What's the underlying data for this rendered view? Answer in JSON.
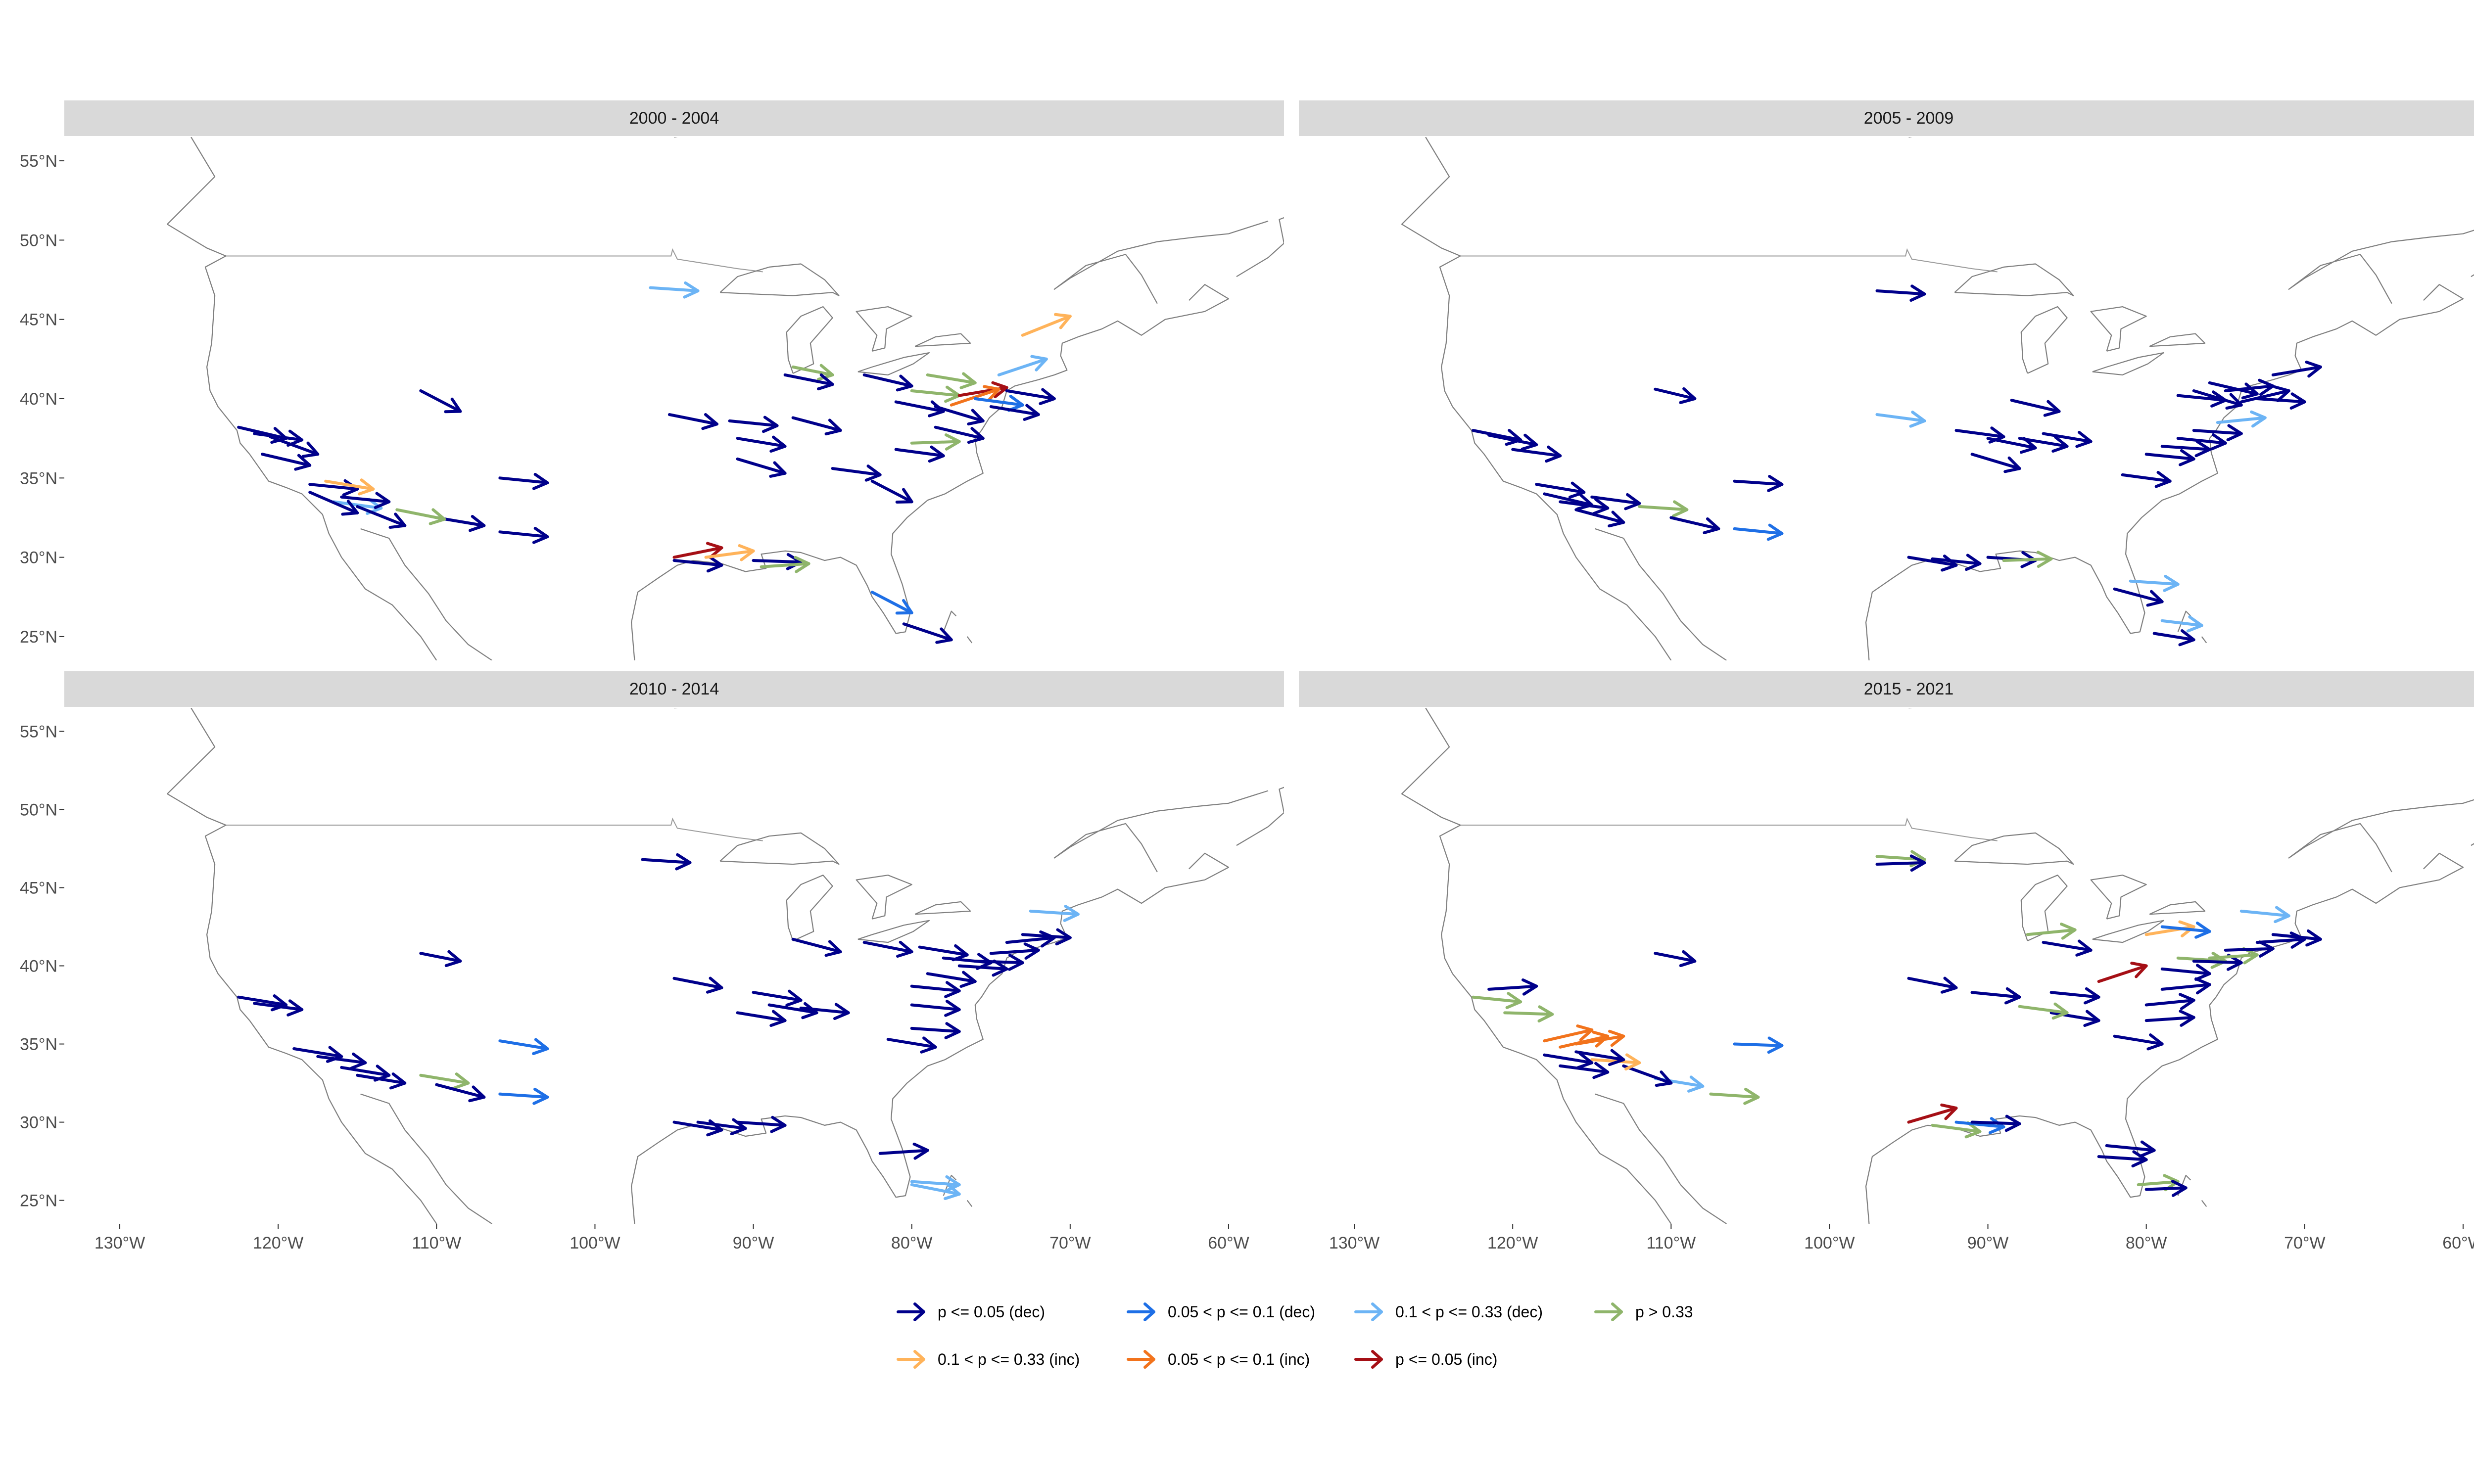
{
  "panels": [
    {
      "title": "2000 - 2004",
      "arrows": [
        [
          -96.5,
          47.0,
          -93.5,
          46.8,
          2
        ],
        [
          -87.5,
          42.0,
          -85,
          41.5,
          3
        ],
        [
          -88,
          41.5,
          -85,
          40.9,
          0
        ],
        [
          -83,
          41.5,
          -80,
          40.8,
          0
        ],
        [
          -81,
          39.8,
          -78,
          39.2,
          0
        ],
        [
          -80,
          40.5,
          -77,
          40.2,
          3
        ],
        [
          -78.5,
          39.5,
          -75.5,
          38.6,
          0
        ],
        [
          -79,
          41.5,
          -76,
          41.0,
          3
        ],
        [
          -77,
          40.2,
          -74,
          40.7,
          6
        ],
        [
          -77.5,
          39.6,
          -74.5,
          40.6,
          5
        ],
        [
          -76,
          40.0,
          -73,
          39.6,
          1
        ],
        [
          -74.5,
          41.5,
          -71.5,
          42.5,
          2
        ],
        [
          -73,
          44,
          -70,
          45.2,
          4
        ],
        [
          -74,
          40.5,
          -71,
          40.0,
          0
        ],
        [
          -75,
          39.5,
          -72,
          39.0,
          0
        ],
        [
          -78.5,
          38.2,
          -75.5,
          37.5,
          0
        ],
        [
          -80,
          37.2,
          -77,
          37.3,
          3
        ],
        [
          -81,
          36.8,
          -78,
          36.4,
          0
        ],
        [
          -82.5,
          34.8,
          -80,
          33.5,
          0
        ],
        [
          -85,
          35.6,
          -82,
          35.2,
          0
        ],
        [
          -87.5,
          38.8,
          -84.5,
          38.0,
          0
        ],
        [
          -91.5,
          38.6,
          -88.5,
          38.3,
          0
        ],
        [
          -91,
          37.5,
          -88,
          37.0,
          0
        ],
        [
          -91,
          36.2,
          -88,
          35.3,
          0
        ],
        [
          -95.3,
          39.0,
          -92.3,
          38.4,
          0
        ],
        [
          -95,
          29.8,
          -92,
          29.5,
          0
        ],
        [
          -95,
          30.0,
          -92,
          30.6,
          6
        ],
        [
          -93,
          30,
          -90,
          30.4,
          4
        ],
        [
          -90,
          29.8,
          -87,
          29.7,
          0
        ],
        [
          -89.5,
          29.4,
          -86.5,
          29.6,
          3
        ],
        [
          -82.5,
          27.8,
          -80,
          26.5,
          1
        ],
        [
          -80.5,
          25.8,
          -77.5,
          24.8,
          0
        ],
        [
          -111,
          40.5,
          -108.5,
          39.2,
          0
        ],
        [
          -106,
          35.0,
          -103,
          34.7,
          0
        ],
        [
          -106,
          31.6,
          -103,
          31.3,
          0
        ],
        [
          -110,
          32.5,
          -107,
          32.0,
          0
        ],
        [
          -112.5,
          33.0,
          -109.5,
          32.4,
          3
        ],
        [
          -122.5,
          38.2,
          -119.5,
          37.5,
          0
        ],
        [
          -121.5,
          37.8,
          -118.5,
          37.4,
          0
        ],
        [
          -120.5,
          37.6,
          -117.5,
          36.5,
          0
        ],
        [
          -121,
          36.5,
          -118,
          35.8,
          0
        ],
        [
          -118,
          34.6,
          -115,
          34.3,
          0
        ],
        [
          -117,
          34.8,
          -114,
          34.3,
          4
        ],
        [
          -116.5,
          33.5,
          -113.5,
          33.1,
          2
        ],
        [
          -116,
          33.8,
          -113,
          33.5,
          0
        ],
        [
          -115,
          33.2,
          -112,
          32.0,
          0
        ],
        [
          -118,
          34.1,
          -115,
          32.8,
          0
        ]
      ]
    },
    {
      "title": "2005 - 2009",
      "arrows": [
        [
          -97,
          46.8,
          -94,
          46.6,
          0
        ],
        [
          -88.5,
          39.9,
          -85.5,
          39.2,
          0
        ],
        [
          -78,
          40.2,
          -75,
          39.9,
          0
        ],
        [
          -77,
          40.5,
          -74,
          39.6,
          0
        ],
        [
          -76,
          41.0,
          -73,
          40.3,
          0
        ],
        [
          -75,
          40.5,
          -72,
          40.8,
          0
        ],
        [
          -74,
          39.8,
          -71,
          40.5,
          0
        ],
        [
          -73,
          40.0,
          -70,
          39.8,
          0
        ],
        [
          -72,
          41.5,
          -69,
          42.0,
          0
        ],
        [
          -75.5,
          38.5,
          -72.5,
          38.8,
          2
        ],
        [
          -77,
          38.0,
          -74,
          37.8,
          0
        ],
        [
          -78,
          37.5,
          -75,
          37.2,
          0
        ],
        [
          -79,
          37.0,
          -76,
          36.8,
          0
        ],
        [
          -80,
          36.5,
          -77,
          36.2,
          0
        ],
        [
          -81.5,
          35.2,
          -78.5,
          34.8,
          0
        ],
        [
          -86.5,
          37.8,
          -83.5,
          37.3,
          0
        ],
        [
          -88,
          37.5,
          -85,
          37.0,
          0
        ],
        [
          -90,
          37.5,
          -87,
          36.9,
          0
        ],
        [
          -92,
          38.0,
          -89,
          37.6,
          0
        ],
        [
          -91,
          36.5,
          -88,
          35.6,
          0
        ],
        [
          -97,
          39.0,
          -94,
          38.6,
          2
        ],
        [
          -95,
          30.0,
          -92,
          29.5,
          0
        ],
        [
          -93.5,
          29.9,
          -90.5,
          29.6,
          0
        ],
        [
          -90,
          30.0,
          -87,
          29.8,
          0
        ],
        [
          -89,
          29.8,
          -86,
          29.9,
          3
        ],
        [
          -82,
          28.0,
          -79,
          27.2,
          0
        ],
        [
          -81,
          28.5,
          -78,
          28.3,
          2
        ],
        [
          -79,
          26.0,
          -76.5,
          25.7,
          2
        ],
        [
          -79.5,
          25.2,
          -77,
          24.8,
          0
        ],
        [
          -111,
          40.6,
          -108.5,
          40.0,
          0
        ],
        [
          -106,
          34.8,
          -103,
          34.6,
          0
        ],
        [
          -106,
          31.8,
          -103,
          31.5,
          1
        ],
        [
          -112,
          33.2,
          -109,
          33.0,
          3
        ],
        [
          -110,
          32.5,
          -107,
          31.8,
          0
        ],
        [
          -122.5,
          38.0,
          -119.5,
          37.4,
          0
        ],
        [
          -121.5,
          37.7,
          -118.5,
          37.1,
          0
        ],
        [
          -120,
          36.8,
          -117,
          36.4,
          0
        ],
        [
          -118.5,
          34.6,
          -115.5,
          34.1,
          0
        ],
        [
          -118,
          34.0,
          -115,
          33.3,
          0
        ],
        [
          -117,
          33.5,
          -114,
          33.1,
          0
        ],
        [
          -116,
          33.0,
          -113,
          32.2,
          0
        ],
        [
          -115,
          33.8,
          -112,
          33.4,
          0
        ]
      ]
    },
    {
      "title": "2010 - 2014",
      "arrows": [
        [
          -97,
          46.8,
          -94,
          46.6,
          0
        ],
        [
          -87.5,
          41.7,
          -84.5,
          40.9,
          0
        ],
        [
          -83,
          41.5,
          -80,
          40.9,
          0
        ],
        [
          -79.5,
          41.2,
          -76.5,
          40.7,
          0
        ],
        [
          -78,
          40.5,
          -75,
          40.2,
          0
        ],
        [
          -77,
          40.0,
          -74,
          39.8,
          0
        ],
        [
          -76,
          40.3,
          -73,
          40.2,
          0
        ],
        [
          -75,
          40.8,
          -72,
          41.0,
          0
        ],
        [
          -74,
          41.5,
          -71,
          41.8,
          0
        ],
        [
          -73,
          42.0,
          -70,
          41.8,
          0
        ],
        [
          -72.5,
          43.5,
          -69.5,
          43.3,
          2
        ],
        [
          -79,
          39.5,
          -76,
          39.0,
          0
        ],
        [
          -80,
          38.7,
          -77,
          38.4,
          0
        ],
        [
          -80,
          37.5,
          -77,
          37.2,
          0
        ],
        [
          -80,
          36.0,
          -77,
          35.8,
          0
        ],
        [
          -81.5,
          35.3,
          -78.5,
          34.8,
          0
        ],
        [
          -87,
          37.3,
          -84,
          37.0,
          0
        ],
        [
          -89,
          37.5,
          -86,
          37.0,
          0
        ],
        [
          -90,
          38.3,
          -87,
          37.8,
          0
        ],
        [
          -91,
          37.0,
          -88,
          36.5,
          0
        ],
        [
          -95,
          39.2,
          -92,
          38.6,
          0
        ],
        [
          -95,
          30.0,
          -92,
          29.5,
          0
        ],
        [
          -93.5,
          30.0,
          -90.5,
          29.6,
          0
        ],
        [
          -91,
          30.0,
          -88,
          29.8,
          0
        ],
        [
          -82,
          28.0,
          -79,
          28.2,
          0
        ],
        [
          -80,
          26.2,
          -77,
          26.0,
          2
        ],
        [
          -80,
          26.0,
          -77,
          25.4,
          2
        ],
        [
          -111,
          40.8,
          -108.5,
          40.3,
          0
        ],
        [
          -106,
          35.2,
          -103,
          34.7,
          1
        ],
        [
          -106,
          31.8,
          -103,
          31.6,
          1
        ],
        [
          -111,
          33.0,
          -108,
          32.5,
          3
        ],
        [
          -110,
          32.4,
          -107,
          31.6,
          0
        ],
        [
          -122.5,
          38.0,
          -119.5,
          37.5,
          0
        ],
        [
          -121.5,
          37.6,
          -118.5,
          37.2,
          0
        ],
        [
          -119,
          34.7,
          -116,
          34.2,
          0
        ],
        [
          -117.5,
          34.2,
          -114.5,
          33.8,
          0
        ],
        [
          -116,
          33.5,
          -113,
          33.0,
          0
        ],
        [
          -115,
          33.0,
          -112,
          32.5,
          0
        ]
      ]
    },
    {
      "title": "2015 - 2021",
      "arrows": [
        [
          -97,
          47.0,
          -94,
          46.8,
          3
        ],
        [
          -97,
          46.5,
          -94,
          46.6,
          0
        ],
        [
          -87.5,
          42.0,
          -84.5,
          42.3,
          3
        ],
        [
          -86.5,
          41.5,
          -83.5,
          41.0,
          0
        ],
        [
          -80,
          42.0,
          -77,
          42.5,
          4
        ],
        [
          -79,
          42.5,
          -76,
          42.2,
          1
        ],
        [
          -74,
          43.5,
          -71,
          43.2,
          2
        ],
        [
          -83,
          39.0,
          -80,
          40.0,
          6
        ],
        [
          -79,
          39.8,
          -76,
          39.5,
          0
        ],
        [
          -78,
          40.5,
          -75,
          40.3,
          3
        ],
        [
          -77,
          40.3,
          -74,
          40.2,
          0
        ],
        [
          -76,
          40.5,
          -73,
          40.7,
          3
        ],
        [
          -75,
          41.0,
          -72,
          41.1,
          0
        ],
        [
          -73,
          41.5,
          -70,
          41.7,
          0
        ],
        [
          -72,
          42.0,
          -69,
          41.7,
          0
        ],
        [
          -79,
          38.5,
          -76,
          38.8,
          0
        ],
        [
          -80,
          37.5,
          -77,
          37.8,
          0
        ],
        [
          -80,
          36.5,
          -77,
          36.7,
          0
        ],
        [
          -82,
          35.5,
          -79,
          35.0,
          0
        ],
        [
          -86,
          38.3,
          -83,
          38.0,
          0
        ],
        [
          -86,
          37.0,
          -83,
          36.5,
          0
        ],
        [
          -88,
          37.4,
          -85,
          37.0,
          3
        ],
        [
          -91,
          38.3,
          -88,
          38.0,
          0
        ],
        [
          -95,
          39.2,
          -92,
          38.6,
          0
        ],
        [
          -95,
          30.0,
          -92,
          30.9,
          6
        ],
        [
          -93.5,
          29.8,
          -90.5,
          29.4,
          3
        ],
        [
          -92,
          30.0,
          -89,
          29.7,
          1
        ],
        [
          -91,
          30.0,
          -88,
          29.9,
          0
        ],
        [
          -82.5,
          28.5,
          -79.5,
          28.2,
          0
        ],
        [
          -83,
          27.8,
          -80,
          27.6,
          0
        ],
        [
          -80.5,
          26.0,
          -78,
          26.2,
          3
        ],
        [
          -80,
          25.7,
          -77.5,
          25.8,
          0
        ],
        [
          -111,
          40.8,
          -108.5,
          40.3,
          0
        ],
        [
          -106,
          35.0,
          -103,
          34.9,
          1
        ],
        [
          -107.5,
          31.8,
          -104.5,
          31.6,
          3
        ],
        [
          -111,
          32.8,
          -108,
          32.3,
          2
        ],
        [
          -113,
          33.6,
          -110,
          32.5,
          0
        ],
        [
          -115,
          34.0,
          -112,
          33.8,
          4
        ],
        [
          -116,
          35.0,
          -113,
          35.5,
          5
        ],
        [
          -117,
          34.8,
          -114,
          35.5,
          5
        ],
        [
          -118,
          35.2,
          -115,
          35.9,
          5
        ],
        [
          -116,
          34.5,
          -113,
          34.0,
          0
        ],
        [
          -117,
          33.6,
          -114,
          33.2,
          0
        ],
        [
          -122.5,
          38.0,
          -119.5,
          37.7,
          3
        ],
        [
          -121.5,
          38.5,
          -118.5,
          38.7,
          0
        ],
        [
          -120.5,
          37.0,
          -117.5,
          36.9,
          3
        ],
        [
          -118,
          34.3,
          -115,
          33.8,
          0
        ]
      ]
    }
  ],
  "x_ticks": [
    -130,
    -120,
    -110,
    -100,
    -90,
    -80,
    -70,
    -60
  ],
  "x_tick_labels": [
    "130°W",
    "120°W",
    "110°W",
    "100°W",
    "90°W",
    "80°W",
    "70°W",
    "60°W"
  ],
  "y_ticks": [
    25,
    30,
    35,
    40,
    45,
    50,
    55
  ],
  "y_tick_labels": [
    "25°N",
    "30°N",
    "35°N",
    "40°N",
    "45°N",
    "50°N",
    "55°N"
  ],
  "lon_range": [
    -133.5,
    -56.5
  ],
  "lat_range": [
    23.5,
    56.5
  ],
  "legend": {
    "row1": [
      {
        "label": "p <= 0.05 (dec)",
        "color": "#00008B"
      },
      {
        "label": "0.05 < p <= 0.1 (dec)",
        "color": "#1E6FE6"
      },
      {
        "label": "0.1  < p <= 0.33 (dec)",
        "color": "#6CB4F5"
      },
      {
        "label": "p > 0.33",
        "color": "#8FB56B"
      }
    ],
    "row2": [
      {
        "label": "0.1  < p <= 0.33 (inc)",
        "color": "#FFB35A"
      },
      {
        "label": "0.05 < p <= 0.1 (inc)",
        "color": "#F2731C"
      },
      {
        "label": "p <= 0.05 (inc)",
        "color": "#A50F15"
      }
    ]
  },
  "colors": {
    "strip_bg": "#d9d9d9",
    "classes": [
      "#00008B",
      "#1E6FE6",
      "#6CB4F5",
      "#8FB56B",
      "#FFB35A",
      "#F2731C",
      "#A50F15"
    ]
  }
}
